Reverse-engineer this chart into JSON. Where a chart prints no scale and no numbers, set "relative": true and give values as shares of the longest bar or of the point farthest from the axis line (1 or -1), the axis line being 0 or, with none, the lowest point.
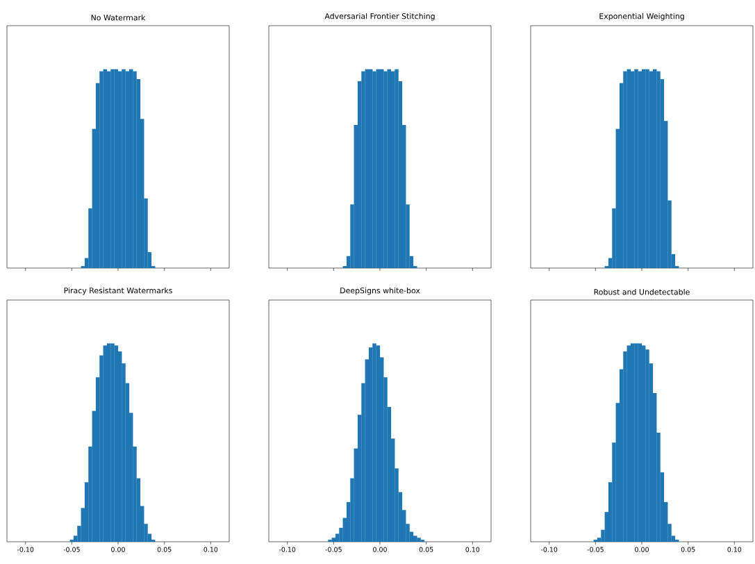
{
  "chart_data": [
    {
      "type": "bar",
      "title": "No Watermark",
      "relative": true,
      "color": "#1f77b4",
      "xlim": [
        -0.12,
        0.12
      ],
      "tick_labels": false,
      "xticks": [
        {
          "value": -0.1,
          "label": null
        },
        {
          "value": -0.05,
          "label": null
        },
        {
          "value": 0,
          "label": null
        },
        {
          "value": 0.05,
          "label": null
        },
        {
          "value": 0.1,
          "label": null
        }
      ],
      "x": [
        -0.038,
        -0.034,
        -0.03,
        -0.026,
        -0.022,
        -0.018,
        -0.014,
        -0.01,
        -0.006,
        -0.002,
        0.002,
        0.006,
        0.01,
        0.014,
        0.018,
        0.022,
        0.026,
        0.03,
        0.034,
        0.038
      ],
      "values": [
        0.01,
        0.05,
        0.3,
        0.7,
        0.93,
        0.99,
        1,
        0.99,
        1,
        1,
        0.99,
        1,
        0.99,
        1,
        0.99,
        0.95,
        0.75,
        0.35,
        0.08,
        0.01
      ]
    },
    {
      "type": "bar",
      "title": "Adversarial Frontier Stitching",
      "relative": true,
      "color": "#1f77b4",
      "xlim": [
        -0.12,
        0.12
      ],
      "tick_labels": false,
      "xticks": [
        {
          "value": -0.1,
          "label": null
        },
        {
          "value": -0.05,
          "label": null
        },
        {
          "value": 0,
          "label": null
        },
        {
          "value": 0.05,
          "label": null
        },
        {
          "value": 0.1,
          "label": null
        }
      ],
      "x": [
        -0.038,
        -0.034,
        -0.03,
        -0.026,
        -0.022,
        -0.018,
        -0.014,
        -0.01,
        -0.006,
        -0.002,
        0.002,
        0.006,
        0.01,
        0.014,
        0.018,
        0.022,
        0.026,
        0.03,
        0.034,
        0.038
      ],
      "values": [
        0.01,
        0.06,
        0.32,
        0.72,
        0.94,
        0.99,
        1,
        1,
        0.99,
        1,
        1,
        0.99,
        1,
        0.99,
        1,
        0.94,
        0.72,
        0.32,
        0.06,
        0.01
      ]
    },
    {
      "type": "bar",
      "title": "Exponential Weighting",
      "relative": true,
      "color": "#1f77b4",
      "xlim": [
        -0.12,
        0.12
      ],
      "tick_labels": false,
      "xticks": [
        {
          "value": -0.1,
          "label": null
        },
        {
          "value": -0.05,
          "label": null
        },
        {
          "value": 0,
          "label": null
        },
        {
          "value": 0.05,
          "label": null
        },
        {
          "value": 0.1,
          "label": null
        }
      ],
      "x": [
        -0.038,
        -0.034,
        -0.03,
        -0.026,
        -0.022,
        -0.018,
        -0.014,
        -0.01,
        -0.006,
        -0.002,
        0.002,
        0.006,
        0.01,
        0.014,
        0.018,
        0.022,
        0.026,
        0.03,
        0.034,
        0.038
      ],
      "values": [
        0.01,
        0.05,
        0.3,
        0.7,
        0.93,
        0.99,
        1,
        0.99,
        1,
        0.99,
        1,
        1,
        0.99,
        1,
        0.99,
        0.95,
        0.74,
        0.34,
        0.07,
        0.01
      ]
    },
    {
      "type": "bar",
      "title": "Piracy Resistant Watermarks",
      "relative": true,
      "color": "#1f77b4",
      "xlim": [
        -0.12,
        0.12
      ],
      "tick_labels": "x",
      "xticks": [
        {
          "value": -0.1,
          "label": "-0.10"
        },
        {
          "value": -0.05,
          "label": "-0.05"
        },
        {
          "value": 0,
          "label": "0.00"
        },
        {
          "value": 0.05,
          "label": "0.05"
        },
        {
          "value": 0.1,
          "label": "0.10"
        }
      ],
      "x": [
        -0.05,
        -0.046,
        -0.042,
        -0.038,
        -0.034,
        -0.03,
        -0.026,
        -0.022,
        -0.018,
        -0.014,
        -0.01,
        -0.006,
        -0.002,
        0.002,
        0.006,
        0.01,
        0.014,
        0.018,
        0.022,
        0.026,
        0.03,
        0.034,
        0.038
      ],
      "values": [
        0.01,
        0.03,
        0.08,
        0.17,
        0.3,
        0.48,
        0.66,
        0.83,
        0.94,
        0.99,
        1,
        1,
        0.99,
        0.96,
        0.9,
        0.8,
        0.65,
        0.48,
        0.32,
        0.18,
        0.09,
        0.04,
        0.01
      ]
    },
    {
      "type": "bar",
      "title": "DeepSigns white-box",
      "relative": true,
      "color": "#1f77b4",
      "xlim": [
        -0.12,
        0.12
      ],
      "tick_labels": "x",
      "xticks": [
        {
          "value": -0.1,
          "label": "-0.10"
        },
        {
          "value": -0.05,
          "label": "-0.05"
        },
        {
          "value": 0,
          "label": "0.00"
        },
        {
          "value": 0.05,
          "label": "0.05"
        },
        {
          "value": 0.1,
          "label": "0.10"
        }
      ],
      "x": [
        -0.054,
        -0.05,
        -0.046,
        -0.042,
        -0.038,
        -0.034,
        -0.03,
        -0.026,
        -0.022,
        -0.018,
        -0.014,
        -0.01,
        -0.006,
        -0.002,
        0.002,
        0.006,
        0.01,
        0.014,
        0.018,
        0.022,
        0.026,
        0.03,
        0.034,
        0.038,
        0.042,
        0.046
      ],
      "values": [
        0.01,
        0.02,
        0.04,
        0.07,
        0.12,
        0.2,
        0.32,
        0.47,
        0.64,
        0.8,
        0.92,
        0.98,
        1,
        0.99,
        0.93,
        0.83,
        0.68,
        0.52,
        0.37,
        0.25,
        0.16,
        0.09,
        0.05,
        0.03,
        0.02,
        0.01
      ]
    },
    {
      "type": "bar",
      "title": "Robust and Undetectable",
      "relative": true,
      "color": "#1f77b4",
      "xlim": [
        -0.12,
        0.12
      ],
      "tick_labels": "x",
      "xticks": [
        {
          "value": -0.1,
          "label": "-0.10"
        },
        {
          "value": -0.05,
          "label": "-0.05"
        },
        {
          "value": 0,
          "label": "0.00"
        },
        {
          "value": 0.05,
          "label": "0.05"
        },
        {
          "value": 0.1,
          "label": "0.10"
        }
      ],
      "x": [
        -0.05,
        -0.046,
        -0.042,
        -0.038,
        -0.034,
        -0.03,
        -0.026,
        -0.022,
        -0.018,
        -0.014,
        -0.01,
        -0.006,
        -0.002,
        0.002,
        0.006,
        0.01,
        0.014,
        0.018,
        0.022,
        0.026,
        0.03,
        0.034,
        0.038
      ],
      "values": [
        0.01,
        0.02,
        0.06,
        0.15,
        0.3,
        0.5,
        0.7,
        0.87,
        0.96,
        0.99,
        1,
        1,
        1,
        0.99,
        0.97,
        0.9,
        0.75,
        0.55,
        0.35,
        0.2,
        0.09,
        0.03,
        0.01
      ]
    }
  ]
}
